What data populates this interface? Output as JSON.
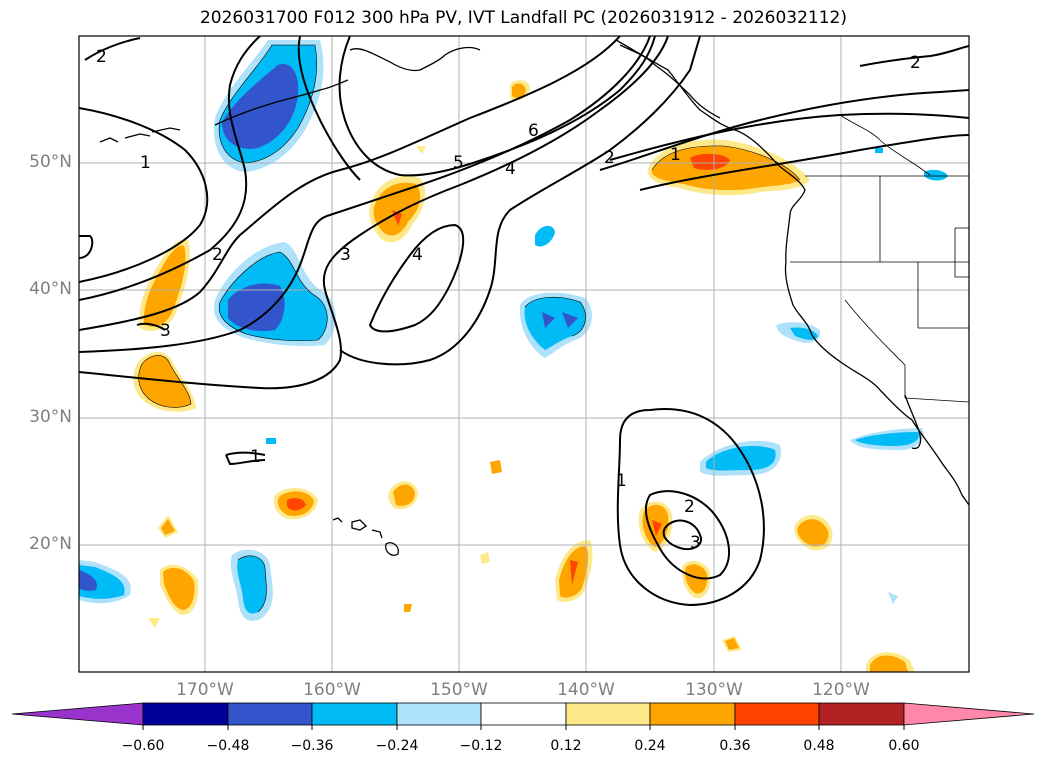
{
  "title": "2026031700 F012 300 hPa PV, IVT Landfall PC (2026031912 - 2026032112)",
  "lat_labels": [
    "50°N",
    "40°N",
    "30°N",
    "20°N"
  ],
  "lon_labels": [
    "170°W",
    "160°W",
    "150°W",
    "140°W",
    "130°W",
    "120°W"
  ],
  "colorbar": {
    "ticks": [
      "−0.60",
      "−0.48",
      "−0.36",
      "−0.24",
      "−0.12",
      "0.12",
      "0.24",
      "0.36",
      "0.48",
      "0.60"
    ],
    "colors": [
      "#9933cc",
      "#000099",
      "#3355cc",
      "#00bbf5",
      "#aee1fa",
      "#ffffff",
      "#fde98a",
      "#ffa500",
      "#ff4500",
      "#b22222",
      "#ff88aa",
      "#ff88aa"
    ]
  },
  "contour_labels": [
    "1",
    "2",
    "2",
    "3",
    "3",
    "4",
    "4",
    "5",
    "6",
    "2",
    "1",
    "2",
    "1",
    "2",
    "3",
    "1"
  ]
}
